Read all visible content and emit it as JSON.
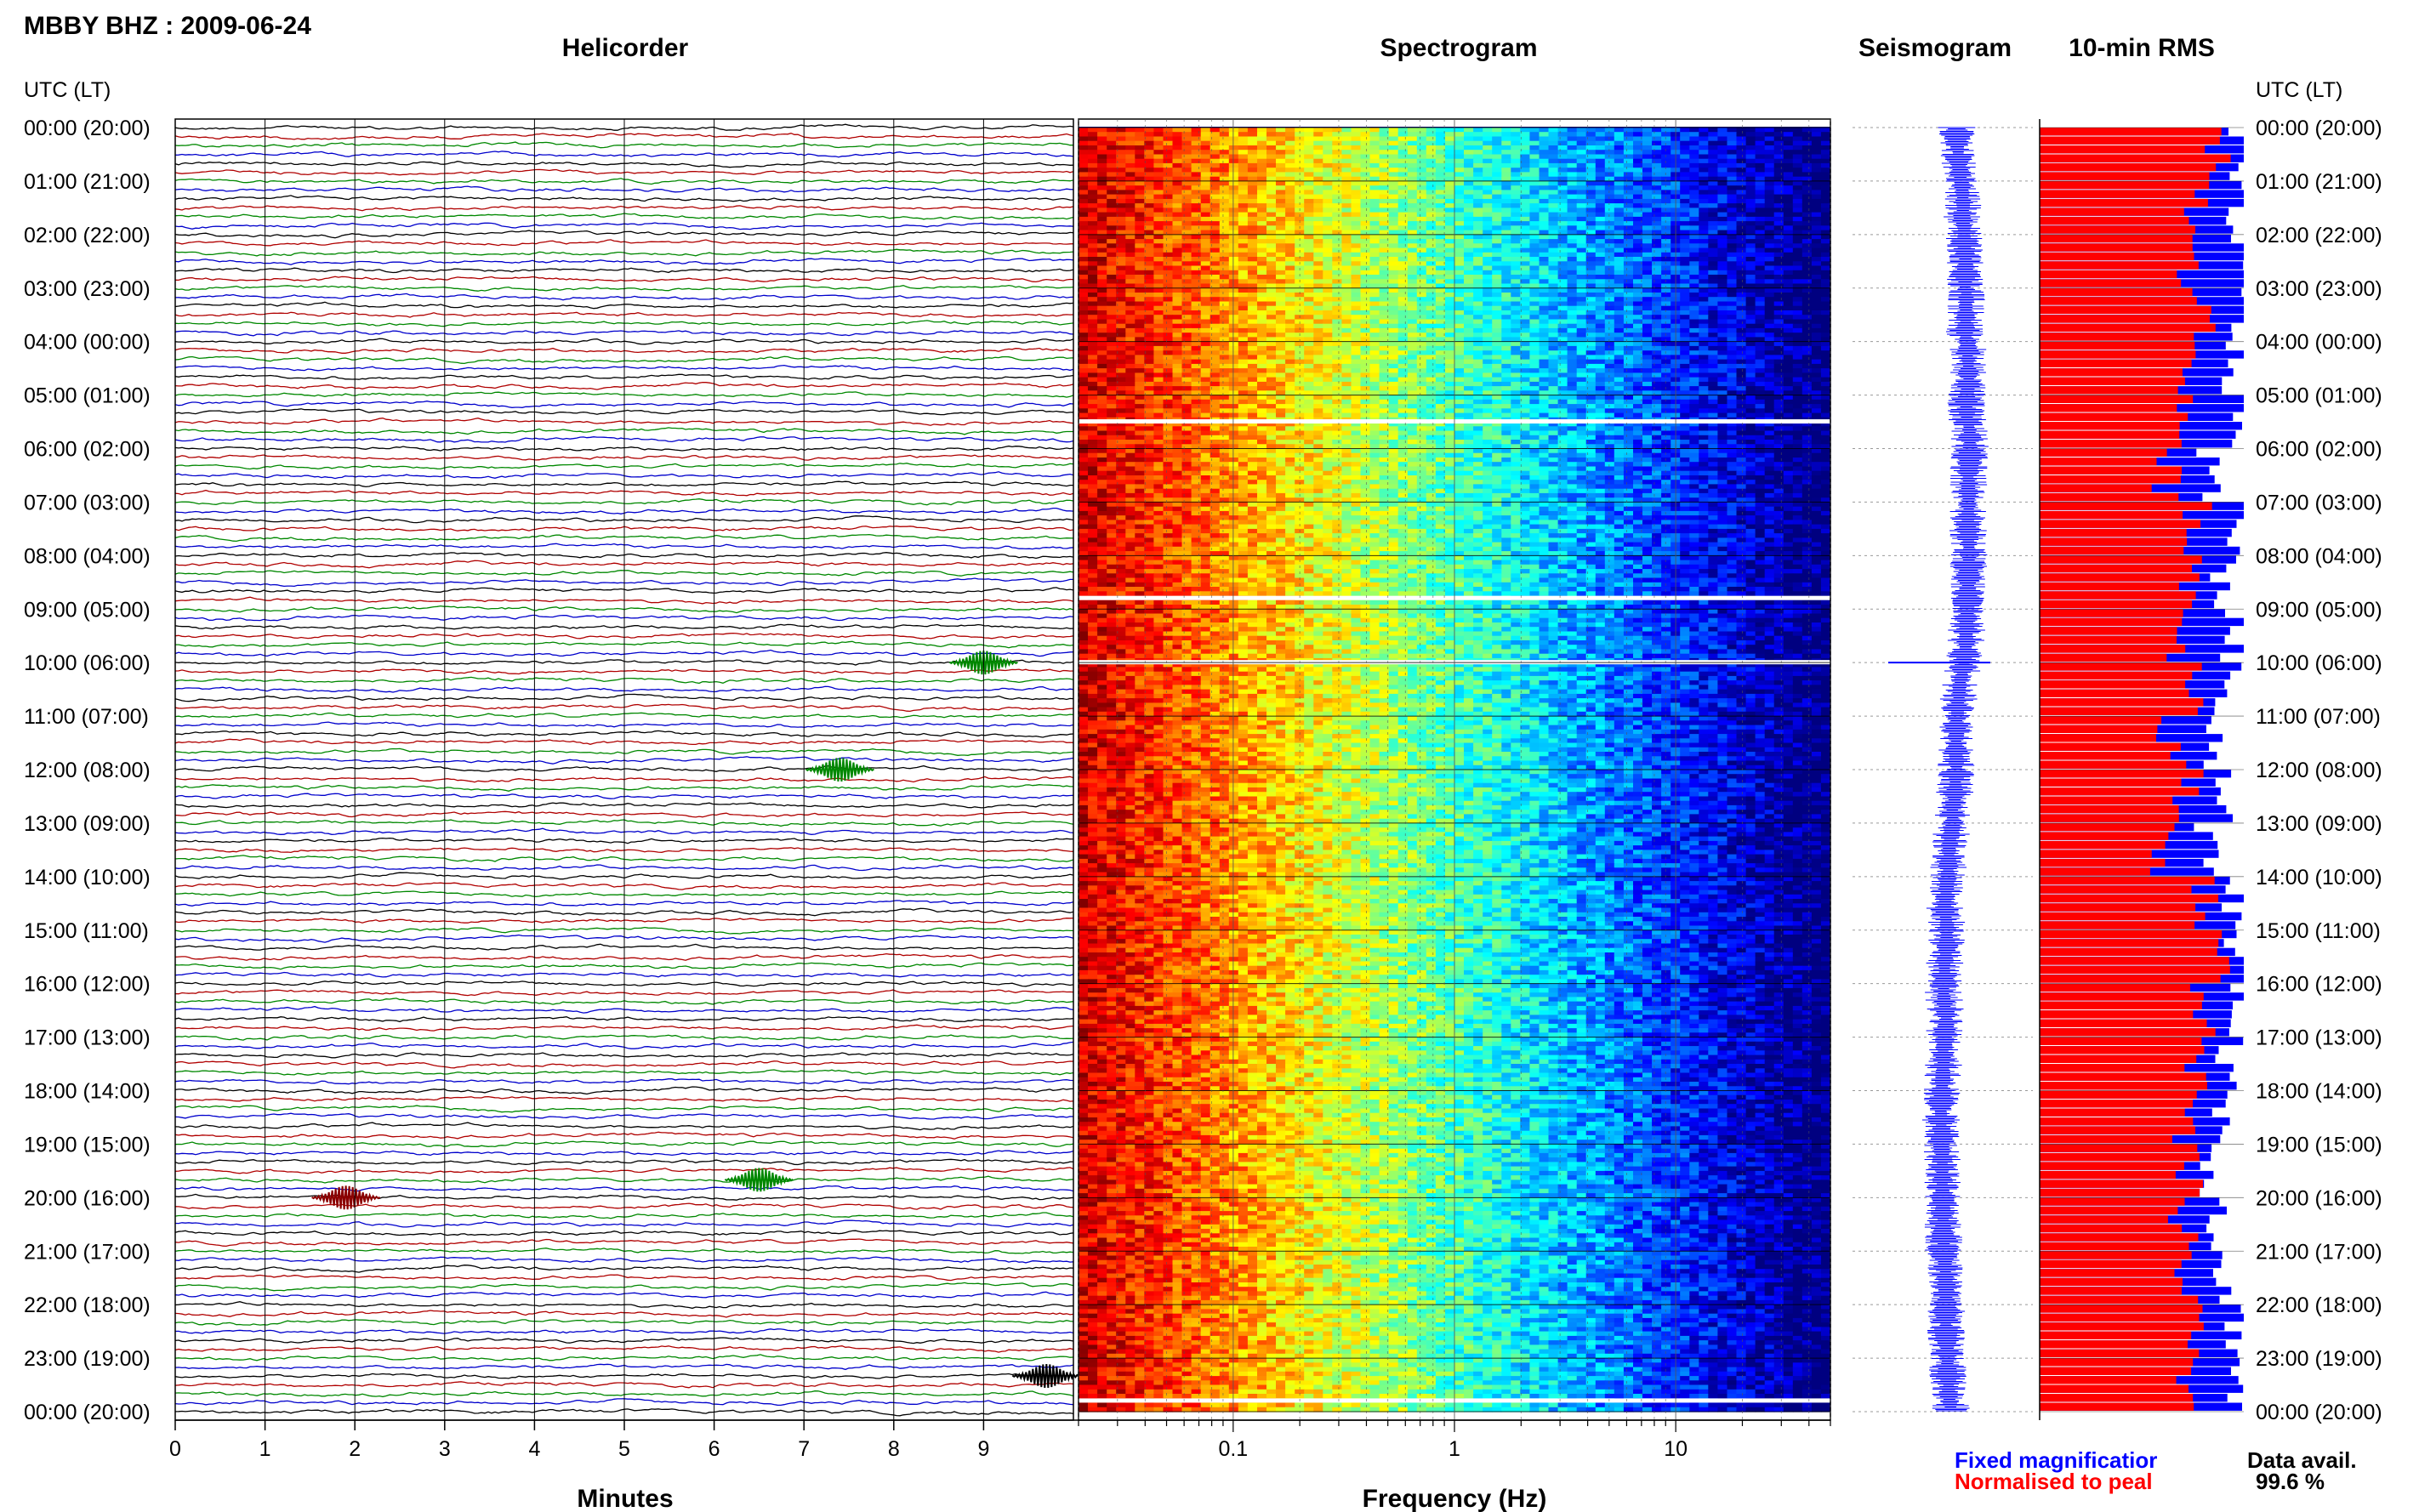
{
  "header": {
    "station_title": "MBBY BHZ : 2009-06-24"
  },
  "panels": {
    "helicorder": "Helicorder",
    "spectrogram": "Spectrogram",
    "seismogram": "Seismogram",
    "rms": "10-min RMS"
  },
  "axes": {
    "time_label_left": "UTC (LT)",
    "time_label_right": "UTC (LT)",
    "minutes_label": "Minutes",
    "frequency_label": "Frequency (Hz)"
  },
  "legend": {
    "fixed": "Fixed magnificatior",
    "normalised": "Normalised to peal",
    "data_avail_label": "Data avail.",
    "data_avail_value": "99.6 %"
  },
  "colors": {
    "trace_cycle": [
      "#000000",
      "#b00000",
      "#008800",
      "#0000cc"
    ],
    "fixed": "#0000ff",
    "normalised": "#ff0000",
    "event": "#8b0000",
    "grid_line": "#000000"
  },
  "chart_data": [
    {
      "type": "line",
      "panel": "helicorder",
      "title": "Helicorder",
      "xlabel": "Minutes",
      "ylabel": "UTC (LT)",
      "x_ticks": [
        0,
        1,
        2,
        3,
        4,
        5,
        6,
        7,
        8,
        9
      ],
      "xlim": [
        0,
        10
      ],
      "time_ticks": [
        "00:00 (20:00)",
        "01:00 (21:00)",
        "02:00 (22:00)",
        "03:00 (23:00)",
        "04:00 (00:00)",
        "05:00 (01:00)",
        "06:00 (02:00)",
        "07:00 (03:00)",
        "08:00 (04:00)",
        "09:00 (05:00)",
        "10:00 (06:00)",
        "11:00 (07:00)",
        "12:00 (08:00)",
        "13:00 (09:00)",
        "14:00 (10:00)",
        "15:00 (11:00)",
        "16:00 (12:00)",
        "17:00 (13:00)",
        "18:00 (14:00)",
        "19:00 (15:00)",
        "20:00 (16:00)",
        "21:00 (17:00)",
        "22:00 (18:00)",
        "23:00 (19:00)",
        "00:00 (20:00)"
      ],
      "trace_count": 144,
      "trace_minutes": 10,
      "events": [
        {
          "trace": 60,
          "minute": 9.0,
          "color": "#008800"
        },
        {
          "trace": 72,
          "minute": 7.4,
          "color": "#008800"
        },
        {
          "trace": 118,
          "minute": 6.5,
          "color": "#008800"
        },
        {
          "trace": 120,
          "minute": 1.9,
          "color": "#8b0000"
        },
        {
          "trace": 140,
          "minute": 9.7,
          "color": "#000000"
        }
      ]
    },
    {
      "type": "heatmap",
      "panel": "spectrogram",
      "title": "Spectrogram",
      "xlabel": "Frequency (Hz)",
      "x_scale": "log",
      "xlim": [
        0.02,
        50
      ],
      "x_ticks": [
        0.1,
        1,
        10
      ],
      "x_tick_labels": [
        "0.1",
        "1",
        "10"
      ],
      "colormap": "jet",
      "gap_hours": [
        5.5,
        8.8,
        10.0,
        23.8
      ]
    },
    {
      "type": "line",
      "panel": "seismogram",
      "title": "Seismogram",
      "description_ylim_hours": [
        0,
        24
      ]
    },
    {
      "type": "bar",
      "panel": "rms",
      "title": "10-min RMS",
      "orientation": "horizontal",
      "intervals_per_day": 144,
      "series": [
        {
          "name": "Fixed magnificatior",
          "color": "#0000ff"
        },
        {
          "name": "Normalised to peal",
          "color": "#ff0000"
        }
      ],
      "hourly_fixed": [
        0.96,
        0.94,
        1.0,
        0.98,
        0.95,
        0.97,
        0.83,
        0.98,
        0.9,
        0.95,
        0.92,
        0.86,
        0.9,
        0.82,
        0.95,
        0.97,
        0.99,
        0.93,
        0.9,
        0.85,
        0.88,
        0.9,
        0.97,
        0.96
      ],
      "hourly_normalised": [
        0.88,
        0.78,
        0.72,
        0.8,
        0.75,
        0.7,
        0.62,
        0.78,
        0.75,
        0.7,
        0.76,
        0.65,
        0.73,
        0.62,
        0.8,
        0.87,
        0.8,
        0.78,
        0.7,
        0.72,
        0.7,
        0.72,
        0.75,
        0.68
      ],
      "data_avail_percent": 99.6
    }
  ]
}
